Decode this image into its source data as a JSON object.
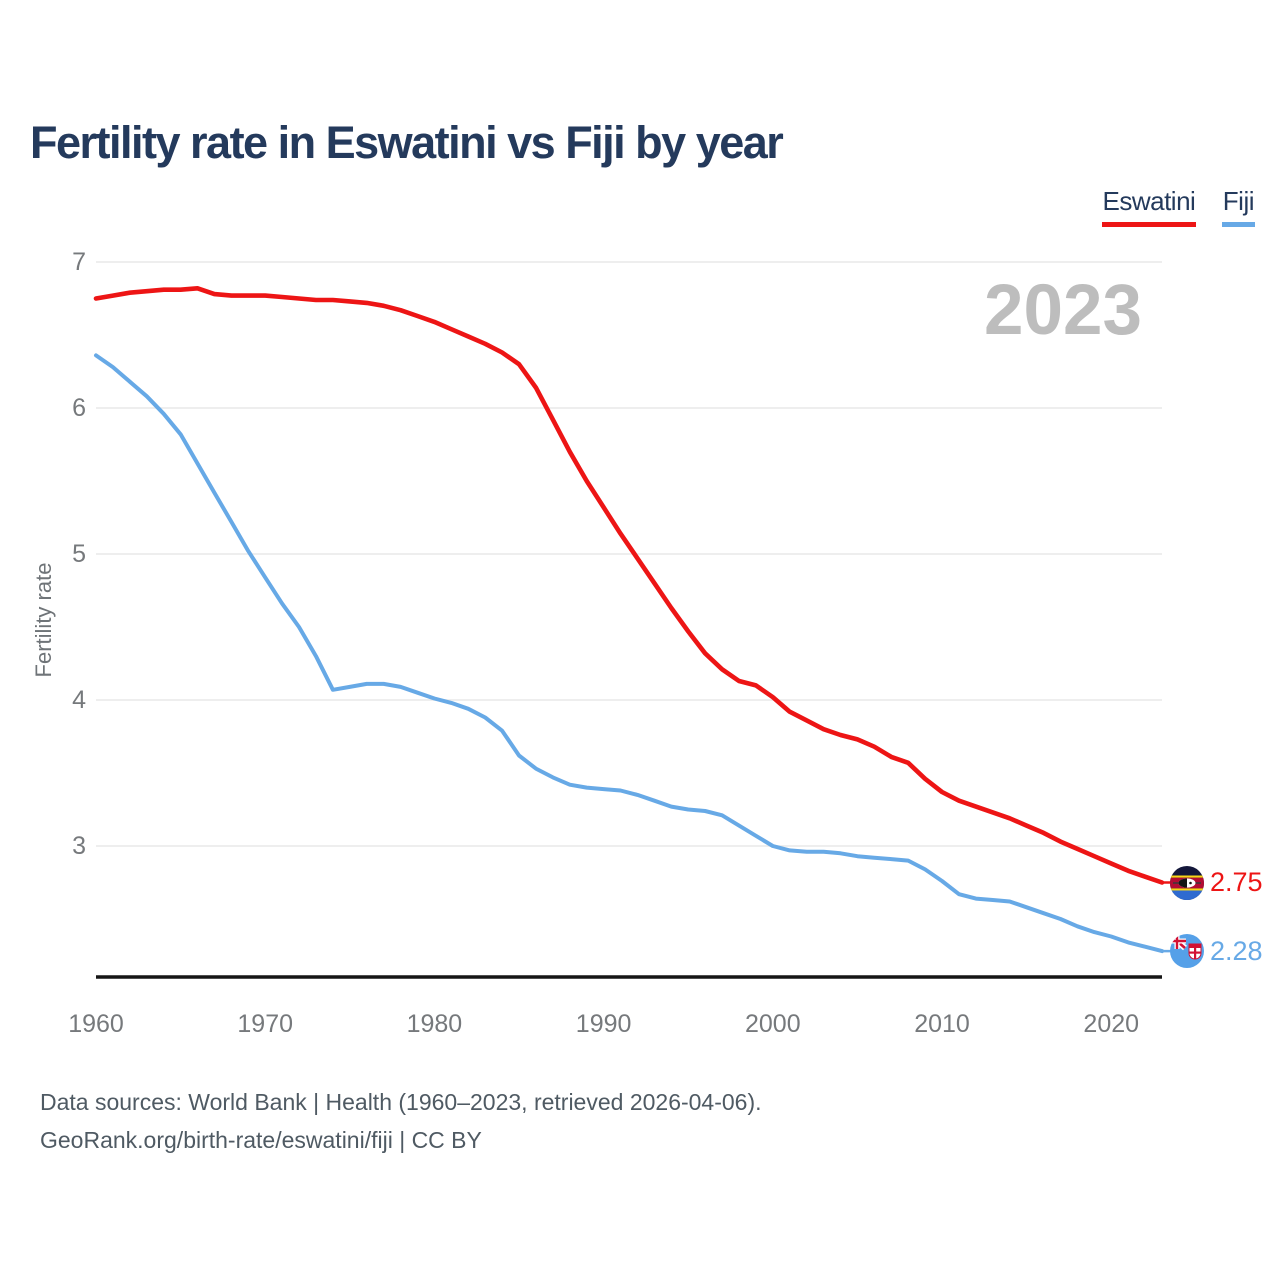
{
  "title": "Fertility rate in Eswatini vs Fiji by year",
  "legend": {
    "items": [
      {
        "label": "Eswatini",
        "color": "#ed1515"
      },
      {
        "label": "Fiji",
        "color": "#67a9e6"
      }
    ]
  },
  "watermark": "2023",
  "y_axis": {
    "label": "Fertility rate",
    "ticks": [
      7,
      6,
      5,
      4,
      3
    ]
  },
  "x_axis": {
    "ticks": [
      1960,
      1970,
      1980,
      1990,
      2000,
      2010,
      2020
    ]
  },
  "end_labels": [
    {
      "series": "Eswatini",
      "value": "2.75",
      "flag": "eswatini-flag",
      "color": "#ed1515"
    },
    {
      "series": "Fiji",
      "value": "2.28",
      "flag": "fiji-flag",
      "color": "#67a9e6"
    }
  ],
  "footer": {
    "line1": "Data sources: World Bank | Health (1960–2023, retrieved 2026-04-06).",
    "line2": "GeoRank.org/birth-rate/eswatini/fiji | CC BY"
  },
  "chart_data": {
    "type": "line",
    "title": "Fertility rate in Eswatini vs Fiji by year",
    "ylabel": "Fertility rate",
    "xlim": [
      1960,
      2023
    ],
    "ylim": [
      2.1,
      7.1
    ],
    "y_ticks": [
      3,
      4,
      5,
      6,
      7
    ],
    "grid": "horizontal",
    "legend_position": "top-right",
    "x": [
      1960,
      1961,
      1962,
      1963,
      1964,
      1965,
      1966,
      1967,
      1968,
      1969,
      1970,
      1971,
      1972,
      1973,
      1974,
      1975,
      1976,
      1977,
      1978,
      1979,
      1980,
      1981,
      1982,
      1983,
      1984,
      1985,
      1986,
      1987,
      1988,
      1989,
      1990,
      1991,
      1992,
      1993,
      1994,
      1995,
      1996,
      1997,
      1998,
      1999,
      2000,
      2001,
      2002,
      2003,
      2004,
      2005,
      2006,
      2007,
      2008,
      2009,
      2010,
      2011,
      2012,
      2013,
      2014,
      2015,
      2016,
      2017,
      2018,
      2019,
      2020,
      2021,
      2022,
      2023
    ],
    "series": [
      {
        "name": "Eswatini",
        "color": "#ed1515",
        "final_value": 2.75,
        "values": [
          6.75,
          6.77,
          6.79,
          6.8,
          6.81,
          6.81,
          6.82,
          6.78,
          6.77,
          6.77,
          6.77,
          6.76,
          6.75,
          6.74,
          6.74,
          6.73,
          6.72,
          6.7,
          6.67,
          6.63,
          6.59,
          6.54,
          6.49,
          6.44,
          6.38,
          6.3,
          6.14,
          5.92,
          5.7,
          5.5,
          5.32,
          5.14,
          4.97,
          4.8,
          4.63,
          4.47,
          4.32,
          4.21,
          4.13,
          4.1,
          4.02,
          3.92,
          3.86,
          3.8,
          3.76,
          3.73,
          3.68,
          3.61,
          3.57,
          3.46,
          3.37,
          3.31,
          3.27,
          3.23,
          3.19,
          3.14,
          3.09,
          3.03,
          2.98,
          2.93,
          2.88,
          2.83,
          2.79,
          2.75
        ]
      },
      {
        "name": "Fiji",
        "color": "#67a9e6",
        "final_value": 2.28,
        "values": [
          6.36,
          6.28,
          6.18,
          6.08,
          5.96,
          5.82,
          5.62,
          5.42,
          5.22,
          5.02,
          4.84,
          4.66,
          4.5,
          4.3,
          4.07,
          4.09,
          4.11,
          4.11,
          4.09,
          4.05,
          4.01,
          3.98,
          3.94,
          3.88,
          3.79,
          3.62,
          3.53,
          3.47,
          3.42,
          3.4,
          3.39,
          3.38,
          3.35,
          3.31,
          3.27,
          3.25,
          3.24,
          3.21,
          3.14,
          3.07,
          3.0,
          2.97,
          2.96,
          2.96,
          2.95,
          2.93,
          2.92,
          2.91,
          2.9,
          2.84,
          2.76,
          2.67,
          2.64,
          2.63,
          2.62,
          2.58,
          2.54,
          2.5,
          2.45,
          2.41,
          2.38,
          2.34,
          2.31,
          2.28
        ]
      }
    ]
  }
}
